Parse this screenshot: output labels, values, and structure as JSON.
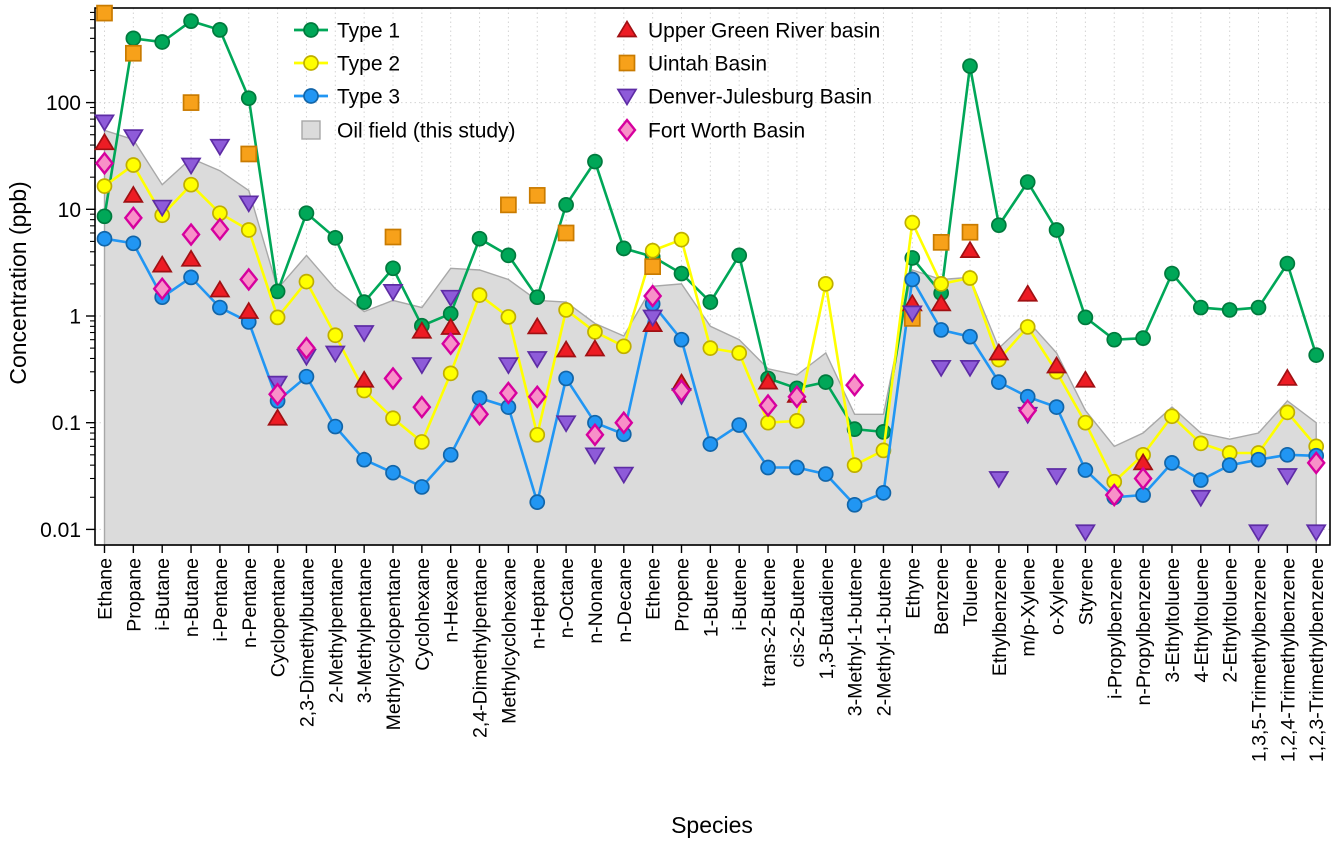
{
  "chart_data": {
    "type": "line",
    "subtype": "log-scale multi-series line + scatter with range band",
    "title": "",
    "xlabel": "Species",
    "ylabel": "Concentration (ppb)",
    "y_scale": "log",
    "ylim": [
      0.0072,
      770
    ],
    "y_ticks": [
      0.01,
      0.1,
      1,
      10,
      100
    ],
    "y_tick_labels": [
      "0.01",
      "0.1",
      "1",
      "10",
      "100"
    ],
    "grid": "dotted, vertical line per species and horizontal line per decade",
    "legend_position": "top, two columns inside plot",
    "categories": [
      "Ethane",
      "Propane",
      "i-Butane",
      "n-Butane",
      "i-Pentane",
      "n-Pentane",
      "Cyclopentane",
      "2,3-Dimethylbutane",
      "2-Methylpentane",
      "3-Methylpentane",
      "Methylcyclopentane",
      "Cyclohexane",
      "n-Hexane",
      "2,4-Dimethylpentane",
      "Methylcyclohexane",
      "n-Heptane",
      "n-Octane",
      "n-Nonane",
      "n-Decane",
      "Ethene",
      "Propene",
      "1-Butene",
      "i-Butene",
      "trans-2-Butene",
      "cis-2-Butene",
      "1,3-Butadiene",
      "3-Methyl-1-butene",
      "2-Methyl-1-butene",
      "Ethyne",
      "Benzene",
      "Toluene",
      "Ethylbenzene",
      "m/p-Xylene",
      "o-Xylene",
      "Styrene",
      "i-Propylbenzene",
      "n-Propylbenzene",
      "3-Ethyltoluene",
      "4-Ethyltoluene",
      "2-Ethyltoluene",
      "1,3,5-Trimethylbenzene",
      "1,2,4-Trimethylbenzene",
      "1,2,3-Trimethylbenzene"
    ],
    "area_series": {
      "name": "Oil field (this study)",
      "color": "#DBDBDB",
      "edge": "#A8A8A8",
      "upper": [
        55,
        45,
        17,
        30,
        23,
        15,
        1.8,
        3.7,
        1.8,
        1.1,
        1.4,
        1.2,
        2.8,
        2.7,
        2.2,
        1.4,
        1.35,
        0.85,
        0.65,
        1.9,
        2.0,
        0.8,
        0.6,
        0.32,
        0.28,
        0.45,
        0.12,
        0.12,
        2.7,
        2.2,
        2.3,
        0.5,
        0.9,
        0.45,
        0.13,
        0.06,
        0.08,
        0.14,
        0.08,
        0.07,
        0.08,
        0.16,
        0.1
      ]
    },
    "line_series": [
      {
        "name": "Type 1",
        "marker": "circle",
        "color": "#00A758",
        "edge": "#007A3D",
        "values": [
          8.6,
          400,
          370,
          580,
          480,
          110,
          1.7,
          9.2,
          5.4,
          1.35,
          2.8,
          0.81,
          1.05,
          5.3,
          3.7,
          1.5,
          11,
          28,
          4.3,
          3.6,
          2.5,
          1.35,
          3.7,
          0.26,
          0.21,
          0.24,
          0.087,
          0.082,
          3.5,
          1.64,
          220,
          7.1,
          18,
          6.4,
          0.97,
          0.6,
          0.62,
          2.5,
          1.2,
          1.14,
          1.2,
          3.1,
          0.43
        ]
      },
      {
        "name": "Type 2",
        "marker": "circle",
        "color": "#FFFF00",
        "edge": "#BFAE00",
        "values": [
          16.5,
          26,
          8.8,
          17,
          9.2,
          6.4,
          0.97,
          2.1,
          0.66,
          0.2,
          0.11,
          0.066,
          0.29,
          1.57,
          0.98,
          0.077,
          1.14,
          0.71,
          0.52,
          4.1,
          5.2,
          0.5,
          0.45,
          0.1,
          0.104,
          2.0,
          0.04,
          0.055,
          7.5,
          2.0,
          2.27,
          0.39,
          0.79,
          0.3,
          0.1,
          0.028,
          0.05,
          0.115,
          0.064,
          0.052,
          0.052,
          0.125,
          0.06
        ]
      },
      {
        "name": "Type 3",
        "marker": "circle",
        "color": "#2196F3",
        "edge": "#1265A8",
        "values": [
          5.3,
          4.8,
          1.5,
          2.3,
          1.2,
          0.88,
          0.16,
          0.27,
          0.092,
          0.045,
          0.034,
          0.025,
          0.05,
          0.17,
          0.14,
          0.018,
          0.26,
          0.1,
          0.078,
          1.3,
          0.6,
          0.063,
          0.095,
          0.038,
          0.038,
          0.033,
          0.017,
          0.022,
          2.2,
          0.74,
          0.64,
          0.24,
          0.175,
          0.14,
          0.036,
          0.02,
          0.021,
          0.042,
          0.029,
          0.04,
          0.045,
          0.05,
          0.049
        ]
      }
    ],
    "scatter_series": [
      {
        "name": "Upper Green River basin",
        "marker": "triangle-up",
        "color": "#ED1C24",
        "edge": "#A01013",
        "values": [
          42,
          13.5,
          3.0,
          3.4,
          1.75,
          1.1,
          0.11,
          null,
          null,
          0.25,
          null,
          0.72,
          0.78,
          null,
          null,
          0.79,
          0.48,
          0.49,
          null,
          0.83,
          0.235,
          null,
          null,
          0.24,
          0.18,
          null,
          null,
          null,
          1.3,
          1.3,
          4.1,
          0.45,
          1.6,
          0.34,
          0.25,
          null,
          0.042,
          null,
          null,
          null,
          null,
          0.26,
          null
        ]
      },
      {
        "name": "Uintah Basin",
        "marker": "square",
        "color": "#F7A11A",
        "edge": "#C97B00",
        "values": [
          690,
          290,
          null,
          100,
          null,
          33,
          null,
          null,
          null,
          null,
          5.5,
          null,
          null,
          null,
          11,
          13.5,
          6.0,
          null,
          null,
          2.9,
          null,
          null,
          null,
          null,
          null,
          null,
          null,
          null,
          0.95,
          4.9,
          6.1,
          null,
          null,
          null,
          null,
          null,
          null,
          null,
          null,
          null,
          null,
          null,
          null
        ]
      },
      {
        "name": "Denver-Julesburg Basin",
        "marker": "triangle-down",
        "color": "#8E5BD9",
        "edge": "#5E2CA5",
        "values": [
          66,
          48,
          10.5,
          26,
          39,
          11.5,
          0.235,
          0.42,
          0.45,
          0.7,
          1.7,
          0.35,
          1.5,
          null,
          0.35,
          0.4,
          0.1,
          0.05,
          0.033,
          0.98,
          0.18,
          null,
          null,
          null,
          null,
          null,
          null,
          null,
          1.07,
          0.33,
          0.33,
          0.03,
          0.12,
          0.032,
          0.0095,
          null,
          null,
          null,
          0.02,
          null,
          0.0095,
          0.032,
          0.0095
        ]
      },
      {
        "name": "Fort Worth Basin",
        "marker": "diamond",
        "color": "#F890C8",
        "edge": "#D6009E",
        "values": [
          27,
          8.3,
          1.8,
          5.8,
          6.5,
          2.2,
          0.185,
          0.5,
          null,
          null,
          0.26,
          0.14,
          0.55,
          0.12,
          0.19,
          0.175,
          null,
          0.077,
          0.1,
          1.54,
          0.2,
          null,
          null,
          0.145,
          0.175,
          null,
          0.225,
          null,
          null,
          null,
          null,
          null,
          0.13,
          null,
          null,
          0.021,
          0.03,
          null,
          null,
          null,
          null,
          null,
          0.042
        ]
      }
    ],
    "legend": {
      "column1": [
        "Type 1",
        "Type 2",
        "Type 3",
        "Oil field (this study)"
      ],
      "column2": [
        "Upper Green River basin",
        "Uintah Basin",
        "Denver-Julesburg Basin",
        "Fort Worth Basin"
      ]
    }
  }
}
